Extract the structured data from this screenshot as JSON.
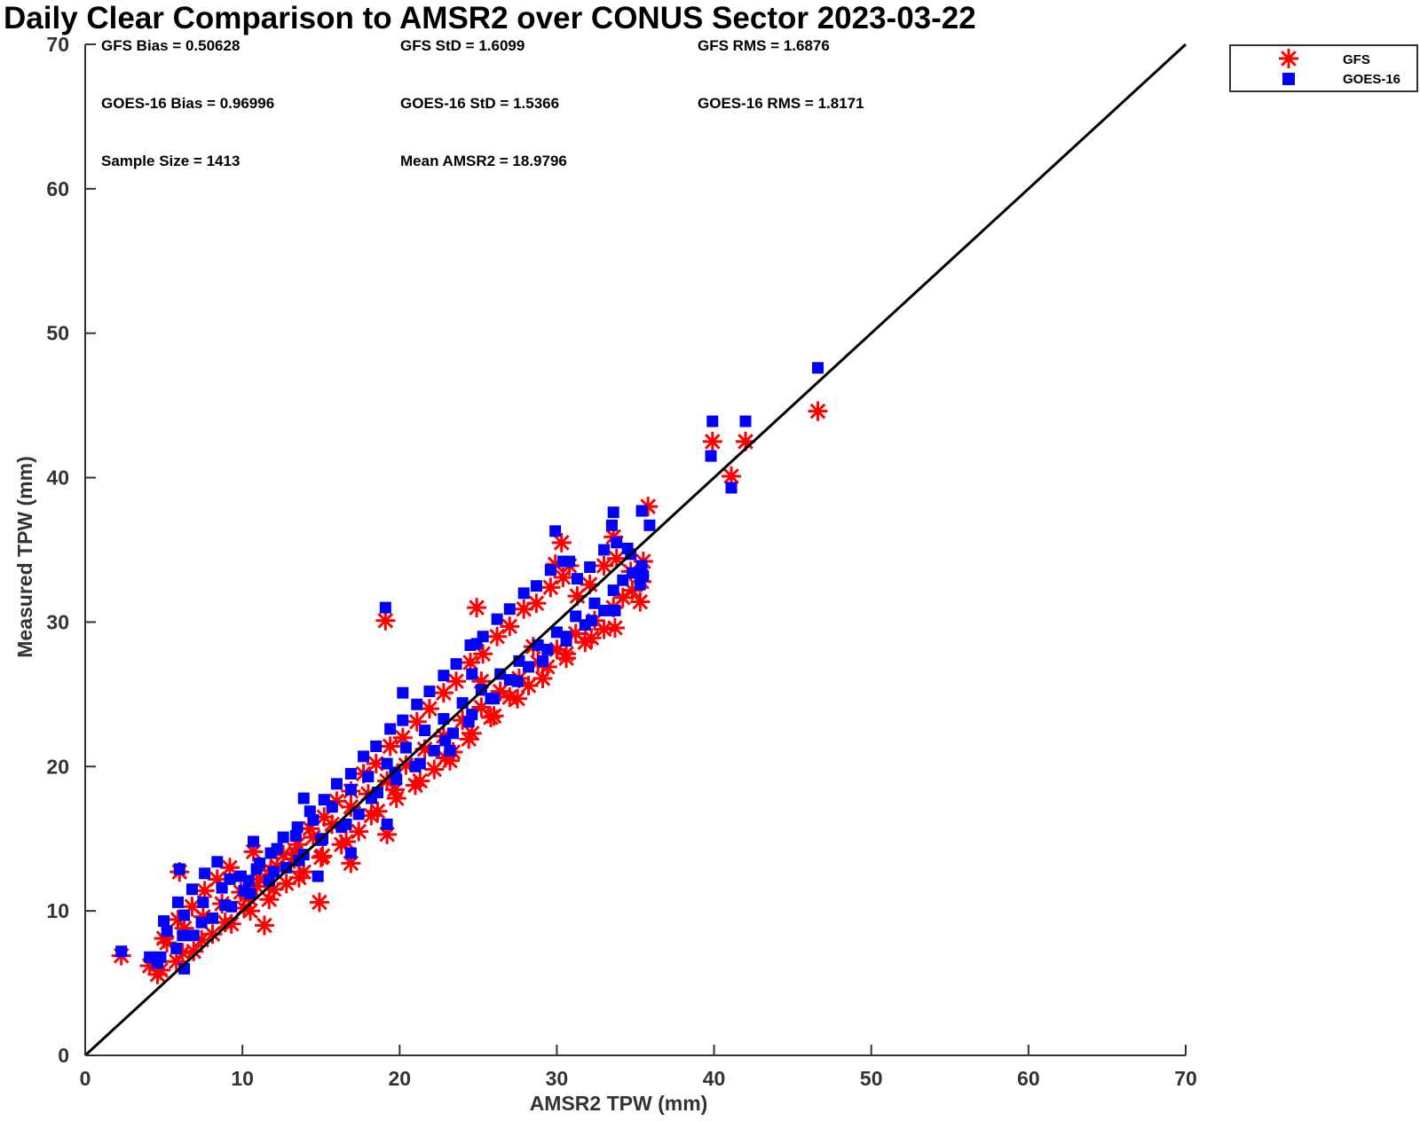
{
  "chart_data": {
    "type": "scatter",
    "title": "Daily Clear Comparison to AMSR2 over CONUS Sector 2023-03-22",
    "xlabel": "AMSR2 TPW (mm)",
    "ylabel": "Measured TPW (mm)",
    "xlim": [
      0,
      70
    ],
    "ylim": [
      0,
      70
    ],
    "xticks": [
      "0",
      "10",
      "20",
      "30",
      "40",
      "50",
      "60",
      "70"
    ],
    "yticks": [
      "0",
      "10",
      "20",
      "30",
      "40",
      "50",
      "60",
      "70"
    ],
    "grid": false,
    "legend_position": "outside-top-right",
    "reference_line": {
      "type": "one-to-one",
      "color": "#000000"
    },
    "colors": {
      "gfs": "#ff0000",
      "goes16": "#0000ff"
    },
    "stats": {
      "gfs_bias": "GFS Bias = 0.50628",
      "gfs_std": "GFS StD = 1.6099",
      "gfs_rms": "GFS RMS = 1.6876",
      "goes_bias": "GOES-16 Bias = 0.96996",
      "goes_std": "GOES-16 StD = 1.5366",
      "goes_rms": "GOES-16 RMS = 1.8171",
      "sample_size": "Sample Size = 1413",
      "mean_amsr2": "Mean AMSR2 = 18.9796"
    },
    "series": [
      {
        "name": "GFS",
        "marker": "asterisk",
        "color": "#ff0000",
        "x": [
          2.3,
          4.1,
          4.6,
          5.2,
          5.8,
          6.3,
          6.9,
          7.5,
          8.1,
          8.7,
          9.3,
          9.9,
          10.5,
          11.1,
          11.7,
          12.2,
          12.8,
          13.4,
          13.9,
          14.5,
          15.1,
          15.7,
          16.3,
          16.9,
          17.4,
          18.0,
          18.6,
          19.2,
          19.8,
          20.4,
          21.0,
          21.6,
          22.2,
          22.8,
          23.4,
          24.0,
          24.6,
          25.2,
          25.8,
          26.4,
          27.0,
          27.6,
          28.2,
          28.8,
          29.4,
          30.0,
          30.6,
          31.2,
          31.8,
          32.4,
          33.0,
          33.6,
          34.2,
          34.8,
          35.4,
          5.0,
          5.9,
          6.8,
          7.6,
          8.4,
          9.2,
          10.1,
          10.9,
          11.8,
          12.6,
          13.5,
          14.3,
          15.2,
          16.0,
          16.9,
          17.7,
          18.5,
          19.4,
          20.2,
          21.1,
          21.9,
          22.8,
          23.6,
          24.5,
          25.3,
          26.2,
          27.0,
          27.9,
          28.7,
          29.6,
          30.4,
          31.3,
          32.1,
          33.0,
          33.8,
          34.7,
          35.5,
          4.8,
          6.2,
          7.4,
          8.9,
          10.4,
          12.0,
          13.6,
          15.0,
          16.6,
          18.2,
          19.7,
          21.3,
          22.9,
          24.4,
          26.0,
          27.5,
          29.1,
          30.6,
          32.2,
          33.7,
          35.3,
          6.0,
          10.7,
          19.1,
          16.9,
          19.2,
          23.2,
          24.9,
          30.3,
          30.8,
          33.6,
          35.8,
          39.9,
          41.1,
          42.0,
          46.6,
          29.9,
          25.2,
          28.5,
          13.3,
          14.9,
          11.4
        ],
        "y": [
          6.9,
          6.2,
          5.6,
          7.8,
          6.5,
          8.8,
          7.2,
          9.6,
          8.4,
          10.5,
          9.1,
          11.3,
          10.0,
          12.2,
          10.8,
          13.1,
          11.9,
          14.0,
          12.7,
          15.1,
          13.8,
          16.0,
          14.6,
          17.2,
          15.5,
          18.1,
          16.9,
          19.0,
          17.8,
          20.1,
          18.7,
          21.2,
          19.8,
          22.1,
          21.0,
          23.2,
          22.3,
          24.1,
          23.4,
          25.2,
          24.8,
          26.1,
          25.6,
          27.2,
          26.9,
          28.1,
          27.8,
          29.2,
          28.6,
          30.1,
          29.5,
          31.0,
          31.7,
          32.2,
          32.8,
          8.1,
          9.4,
          10.3,
          11.4,
          12.2,
          13.0,
          10.2,
          11.7,
          12.8,
          13.9,
          14.6,
          15.7,
          16.5,
          17.6,
          18.3,
          19.5,
          20.2,
          21.4,
          22.0,
          23.1,
          24.0,
          25.1,
          25.9,
          27.2,
          27.8,
          29.0,
          29.7,
          30.9,
          31.3,
          32.4,
          33.1,
          31.8,
          32.6,
          33.9,
          34.4,
          33.5,
          34.2,
          5.9,
          7.1,
          8.0,
          9.2,
          10.9,
          11.5,
          12.3,
          13.7,
          14.8,
          16.6,
          18.4,
          19.0,
          20.6,
          21.9,
          23.5,
          24.7,
          26.1,
          27.5,
          28.9,
          29.6,
          31.4,
          12.7,
          14.1,
          30.1,
          13.3,
          15.3,
          20.4,
          31.0,
          35.5,
          33.9,
          35.9,
          38.0,
          42.5,
          40.1,
          42.5,
          44.6,
          34.0,
          25.9,
          28.3,
          13.6,
          10.6,
          9.0
        ]
      },
      {
        "name": "GOES-16",
        "marker": "square",
        "color": "#0000ff",
        "x": [
          2.3,
          4.1,
          4.6,
          5.2,
          5.8,
          6.3,
          6.9,
          7.5,
          8.1,
          8.7,
          9.3,
          9.9,
          10.5,
          11.1,
          11.7,
          12.2,
          12.8,
          13.4,
          13.9,
          14.5,
          15.1,
          15.7,
          16.3,
          16.9,
          17.4,
          18.0,
          18.6,
          19.2,
          19.8,
          20.4,
          21.0,
          21.6,
          22.2,
          22.8,
          23.4,
          24.0,
          24.6,
          25.2,
          25.8,
          26.4,
          27.0,
          27.6,
          28.2,
          28.8,
          29.4,
          30.0,
          30.6,
          31.2,
          31.8,
          32.4,
          33.0,
          33.6,
          34.2,
          34.8,
          35.4,
          5.0,
          5.9,
          6.8,
          7.6,
          8.4,
          9.2,
          10.1,
          10.9,
          11.8,
          12.6,
          13.5,
          14.3,
          15.2,
          16.0,
          16.9,
          17.7,
          18.5,
          19.4,
          20.2,
          21.1,
          21.9,
          22.8,
          23.6,
          24.5,
          25.3,
          26.2,
          27.0,
          27.9,
          28.7,
          29.6,
          30.4,
          31.3,
          32.1,
          33.0,
          33.8,
          34.7,
          35.5,
          4.8,
          6.2,
          7.4,
          8.9,
          10.4,
          12.0,
          13.6,
          15.0,
          16.6,
          18.2,
          19.7,
          21.3,
          22.9,
          24.4,
          26.0,
          27.5,
          29.1,
          30.6,
          32.2,
          33.7,
          35.3,
          6.0,
          10.7,
          19.1,
          16.9,
          19.2,
          23.2,
          24.9,
          29.9,
          30.8,
          33.6,
          33.5,
          35.4,
          35.9,
          34.5,
          39.9,
          39.8,
          41.1,
          42.0,
          46.6,
          24.6,
          20.2,
          13.9,
          14.8,
          6.3
        ],
        "y": [
          7.2,
          6.8,
          6.4,
          8.6,
          7.4,
          9.7,
          8.3,
          10.6,
          9.5,
          11.6,
          10.3,
          12.4,
          11.2,
          13.3,
          12.1,
          14.3,
          13.0,
          15.2,
          13.9,
          16.3,
          15.0,
          17.2,
          15.8,
          18.4,
          16.7,
          19.3,
          18.2,
          20.2,
          19.1,
          21.3,
          20.0,
          22.5,
          21.1,
          23.3,
          22.3,
          24.4,
          23.6,
          25.3,
          24.7,
          26.4,
          26.0,
          27.3,
          26.9,
          28.4,
          28.1,
          29.3,
          29.0,
          30.4,
          29.8,
          31.3,
          30.8,
          32.2,
          32.9,
          33.4,
          33.9,
          9.3,
          10.6,
          11.5,
          12.6,
          13.4,
          12.2,
          11.4,
          12.9,
          14.0,
          15.1,
          15.8,
          16.9,
          17.7,
          18.8,
          19.5,
          20.7,
          21.4,
          22.6,
          23.2,
          24.3,
          25.2,
          26.3,
          27.1,
          28.4,
          29.0,
          30.2,
          30.9,
          32.0,
          32.5,
          33.6,
          34.2,
          33.0,
          33.8,
          35.0,
          35.5,
          34.7,
          33.2,
          6.8,
          8.3,
          9.2,
          10.4,
          12.1,
          12.7,
          13.5,
          14.9,
          16.0,
          17.8,
          19.6,
          20.2,
          21.8,
          23.1,
          24.7,
          25.9,
          27.3,
          28.7,
          30.1,
          30.8,
          32.6,
          12.9,
          14.8,
          31.0,
          14.0,
          16.0,
          21.1,
          28.5,
          36.3,
          34.2,
          37.6,
          36.7,
          37.7,
          36.7,
          35.1,
          43.9,
          41.5,
          39.3,
          43.9,
          47.6,
          26.4,
          25.1,
          17.8,
          12.4,
          6.0
        ]
      }
    ]
  }
}
